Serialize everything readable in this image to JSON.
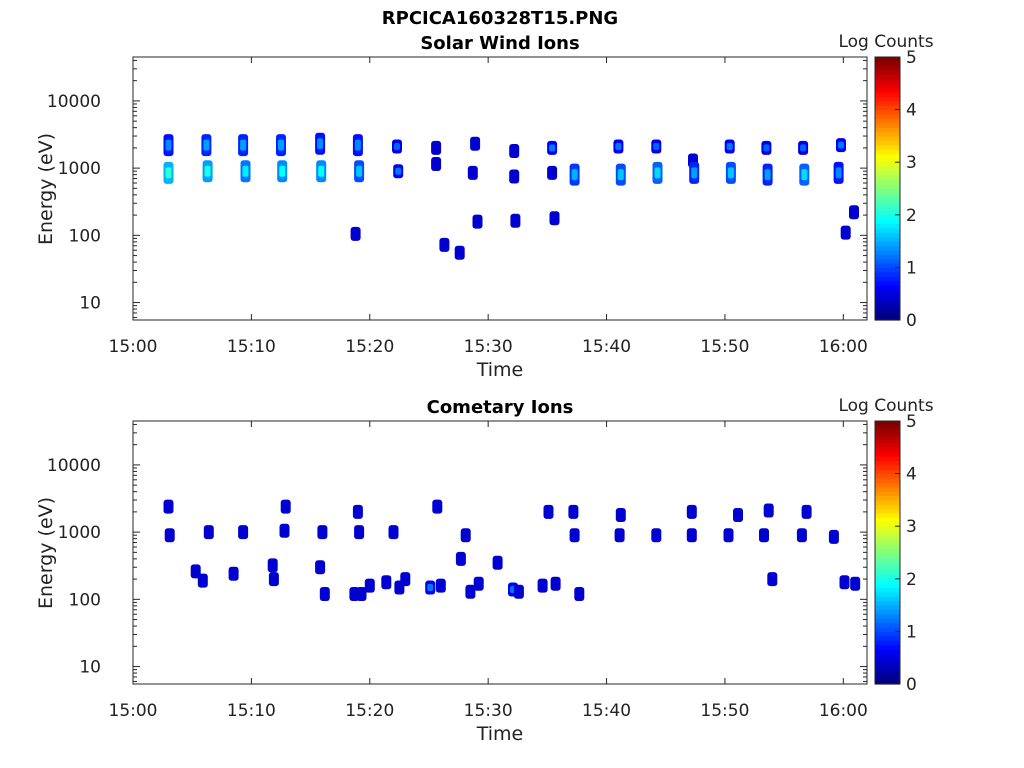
{
  "figure": {
    "title": "RPCICA160328T15.PNG"
  },
  "chart_data": [
    {
      "type": "heatmap",
      "title": "Solar Wind Ions",
      "xlabel": "Time",
      "ylabel": "Energy (eV)",
      "x_ticks": [
        "15:00",
        "15:10",
        "15:20",
        "15:30",
        "15:40",
        "15:50",
        "16:00"
      ],
      "x_range_minutes": [
        0,
        62
      ],
      "y_scale": "log",
      "y_ticks": [
        "10",
        "100",
        "1000",
        "10000"
      ],
      "y_ticks_values": [
        10,
        100,
        1000,
        10000
      ],
      "ylim": [
        5.5,
        45000
      ],
      "colorbar": {
        "label": "Log Counts",
        "min": 0,
        "max": 5,
        "ticks": [
          "0",
          "1",
          "2",
          "3",
          "4",
          "5"
        ]
      },
      "blobs": [
        {
          "t": 3.0,
          "e": 2200,
          "v": 1.3
        },
        {
          "t": 3.0,
          "e": 850,
          "v": 2.1
        },
        {
          "t": 6.2,
          "e": 2200,
          "v": 1.4
        },
        {
          "t": 6.3,
          "e": 900,
          "v": 2.0
        },
        {
          "t": 9.3,
          "e": 2200,
          "v": 1.4
        },
        {
          "t": 9.5,
          "e": 900,
          "v": 1.8
        },
        {
          "t": 12.5,
          "e": 2200,
          "v": 1.4
        },
        {
          "t": 12.6,
          "e": 900,
          "v": 1.9
        },
        {
          "t": 15.8,
          "e": 2300,
          "v": 1.3
        },
        {
          "t": 15.9,
          "e": 900,
          "v": 1.9
        },
        {
          "t": 19.0,
          "e": 2200,
          "v": 1.3
        },
        {
          "t": 19.1,
          "e": 900,
          "v": 1.6
        },
        {
          "t": 22.3,
          "e": 2100,
          "v": 1.1
        },
        {
          "t": 22.4,
          "e": 900,
          "v": 1.2
        },
        {
          "t": 25.6,
          "e": 2000,
          "v": 0.9
        },
        {
          "t": 25.6,
          "e": 1150,
          "v": 0.7
        },
        {
          "t": 28.9,
          "e": 2300,
          "v": 0.9
        },
        {
          "t": 28.7,
          "e": 850,
          "v": 0.8
        },
        {
          "t": 32.2,
          "e": 1800,
          "v": 0.9
        },
        {
          "t": 32.2,
          "e": 750,
          "v": 0.9
        },
        {
          "t": 35.4,
          "e": 2000,
          "v": 1.2
        },
        {
          "t": 35.4,
          "e": 850,
          "v": 0.9
        },
        {
          "t": 37.3,
          "e": 800,
          "v": 1.5
        },
        {
          "t": 41.0,
          "e": 2100,
          "v": 1.2
        },
        {
          "t": 41.2,
          "e": 800,
          "v": 1.6
        },
        {
          "t": 44.2,
          "e": 2100,
          "v": 1.1
        },
        {
          "t": 44.3,
          "e": 850,
          "v": 1.7
        },
        {
          "t": 47.3,
          "e": 1300,
          "v": 1.0
        },
        {
          "t": 47.4,
          "e": 850,
          "v": 1.4
        },
        {
          "t": 50.4,
          "e": 2100,
          "v": 1.2
        },
        {
          "t": 50.5,
          "e": 850,
          "v": 1.6
        },
        {
          "t": 53.5,
          "e": 2000,
          "v": 1.1
        },
        {
          "t": 53.6,
          "e": 800,
          "v": 1.4
        },
        {
          "t": 56.6,
          "e": 2000,
          "v": 1.1
        },
        {
          "t": 56.7,
          "e": 800,
          "v": 1.7
        },
        {
          "t": 59.8,
          "e": 2200,
          "v": 1.2
        },
        {
          "t": 59.6,
          "e": 850,
          "v": 1.3
        },
        {
          "t": 18.8,
          "e": 105,
          "v": 0.6
        },
        {
          "t": 26.3,
          "e": 72,
          "v": 0.5
        },
        {
          "t": 27.6,
          "e": 55,
          "v": 0.5
        },
        {
          "t": 29.1,
          "e": 160,
          "v": 0.5
        },
        {
          "t": 32.3,
          "e": 165,
          "v": 0.5
        },
        {
          "t": 35.6,
          "e": 180,
          "v": 0.5
        },
        {
          "t": 60.2,
          "e": 110,
          "v": 0.5
        },
        {
          "t": 60.9,
          "e": 220,
          "v": 0.6
        }
      ]
    },
    {
      "type": "heatmap",
      "title": "Cometary Ions",
      "xlabel": "Time",
      "ylabel": "Energy (eV)",
      "x_ticks": [
        "15:00",
        "15:10",
        "15:20",
        "15:30",
        "15:40",
        "15:50",
        "16:00"
      ],
      "x_range_minutes": [
        0,
        62
      ],
      "y_scale": "log",
      "y_ticks": [
        "10",
        "100",
        "1000",
        "10000"
      ],
      "y_ticks_values": [
        10,
        100,
        1000,
        10000
      ],
      "ylim": [
        5.5,
        45000
      ],
      "colorbar": {
        "label": "Log Counts",
        "min": 0,
        "max": 5,
        "ticks": [
          "0",
          "1",
          "2",
          "3",
          "4",
          "5"
        ]
      },
      "blobs": [
        {
          "t": 3.0,
          "e": 2400,
          "v": 0.6
        },
        {
          "t": 3.1,
          "e": 900,
          "v": 1.0
        },
        {
          "t": 5.3,
          "e": 260,
          "v": 0.6
        },
        {
          "t": 5.9,
          "e": 190,
          "v": 0.6
        },
        {
          "t": 6.4,
          "e": 1000,
          "v": 0.8
        },
        {
          "t": 8.5,
          "e": 240,
          "v": 0.6
        },
        {
          "t": 9.3,
          "e": 1000,
          "v": 0.8
        },
        {
          "t": 11.8,
          "e": 320,
          "v": 0.6
        },
        {
          "t": 11.9,
          "e": 200,
          "v": 0.7
        },
        {
          "t": 12.8,
          "e": 1050,
          "v": 0.8
        },
        {
          "t": 12.9,
          "e": 2400,
          "v": 0.6
        },
        {
          "t": 15.8,
          "e": 300,
          "v": 0.8
        },
        {
          "t": 16.0,
          "e": 1000,
          "v": 0.9
        },
        {
          "t": 16.2,
          "e": 120,
          "v": 0.8
        },
        {
          "t": 18.7,
          "e": 120,
          "v": 0.9
        },
        {
          "t": 19.0,
          "e": 2000,
          "v": 0.6
        },
        {
          "t": 19.1,
          "e": 1000,
          "v": 0.8
        },
        {
          "t": 19.3,
          "e": 120,
          "v": 1.0
        },
        {
          "t": 20.0,
          "e": 160,
          "v": 0.8
        },
        {
          "t": 21.4,
          "e": 180,
          "v": 0.8
        },
        {
          "t": 22.0,
          "e": 1000,
          "v": 0.8
        },
        {
          "t": 22.5,
          "e": 150,
          "v": 0.8
        },
        {
          "t": 23.0,
          "e": 200,
          "v": 0.8
        },
        {
          "t": 25.1,
          "e": 150,
          "v": 1.2
        },
        {
          "t": 25.7,
          "e": 2400,
          "v": 0.6
        },
        {
          "t": 26.0,
          "e": 160,
          "v": 1.0
        },
        {
          "t": 27.7,
          "e": 400,
          "v": 0.6
        },
        {
          "t": 28.1,
          "e": 900,
          "v": 0.6
        },
        {
          "t": 28.5,
          "e": 130,
          "v": 0.9
        },
        {
          "t": 29.2,
          "e": 170,
          "v": 0.9
        },
        {
          "t": 30.8,
          "e": 350,
          "v": 0.6
        },
        {
          "t": 32.1,
          "e": 140,
          "v": 1.2
        },
        {
          "t": 32.6,
          "e": 130,
          "v": 1.0
        },
        {
          "t": 34.6,
          "e": 160,
          "v": 0.8
        },
        {
          "t": 35.1,
          "e": 2000,
          "v": 0.6
        },
        {
          "t": 35.7,
          "e": 170,
          "v": 0.8
        },
        {
          "t": 37.2,
          "e": 2000,
          "v": 0.6
        },
        {
          "t": 37.3,
          "e": 900,
          "v": 0.8
        },
        {
          "t": 37.7,
          "e": 120,
          "v": 0.8
        },
        {
          "t": 41.2,
          "e": 1800,
          "v": 0.6
        },
        {
          "t": 41.1,
          "e": 900,
          "v": 0.9
        },
        {
          "t": 44.2,
          "e": 900,
          "v": 0.9
        },
        {
          "t": 47.2,
          "e": 2000,
          "v": 0.6
        },
        {
          "t": 47.2,
          "e": 900,
          "v": 0.8
        },
        {
          "t": 50.3,
          "e": 900,
          "v": 1.0
        },
        {
          "t": 51.1,
          "e": 1800,
          "v": 0.6
        },
        {
          "t": 53.3,
          "e": 900,
          "v": 0.8
        },
        {
          "t": 53.7,
          "e": 2100,
          "v": 0.6
        },
        {
          "t": 54.0,
          "e": 200,
          "v": 0.6
        },
        {
          "t": 56.5,
          "e": 900,
          "v": 0.9
        },
        {
          "t": 56.9,
          "e": 2000,
          "v": 0.6
        },
        {
          "t": 59.2,
          "e": 850,
          "v": 0.6
        },
        {
          "t": 60.1,
          "e": 180,
          "v": 0.6
        },
        {
          "t": 61.0,
          "e": 170,
          "v": 0.6
        }
      ]
    }
  ]
}
